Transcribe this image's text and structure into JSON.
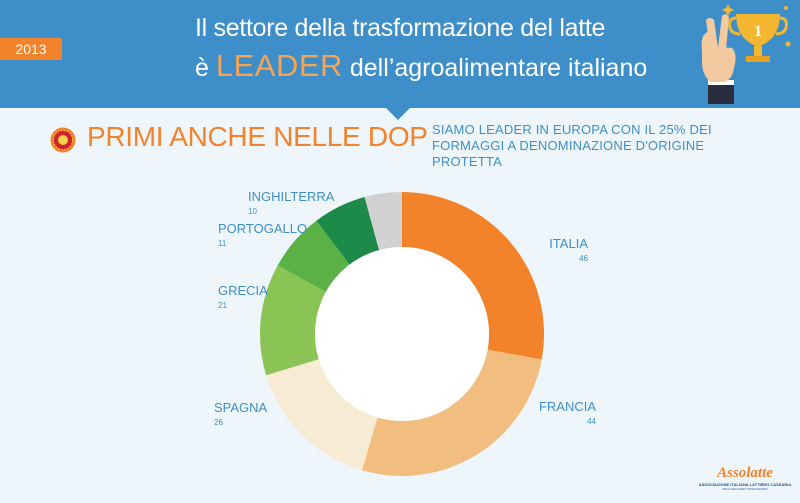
{
  "header": {
    "year": "2013",
    "title_line1": "Il settore della trasformazione del latte",
    "title_line2_pre": "è",
    "title_line2_highlight": "LEADER",
    "title_line2_post": "dell’agroalimentare italiano"
  },
  "section": {
    "title": "PRIMI ANCHE NELLE DOP",
    "subtitle_line1": "SIAMO LEADER IN EUROPA CON IL 25% DEI",
    "subtitle_line2": "FORMAGGI A DENOMINAZIONE D'ORIGINE PROTETTA"
  },
  "logo": {
    "name": "Assolatte",
    "sub1": "ASSOCIAZIONE ITALIANA LATTIERO CASEARIA",
    "sub2": "MILK AND DAIRY ASSOCIATION"
  },
  "colors": {
    "header_blue": "#3e8fc9",
    "accent_orange": "#f3832a"
  },
  "icons": [
    "trophy-hand-icon",
    "dop-seal-icon"
  ],
  "chart_data": {
    "type": "pie",
    "title": "",
    "categories": [
      "ITALIA",
      "FRANCIA",
      "SPAGNA",
      "GRECIA",
      "PORTOGALLO",
      "INGHILTERRA",
      ""
    ],
    "values": [
      46,
      44,
      26,
      21,
      11,
      10,
      7
    ],
    "value_labels": [
      "46",
      "44",
      "26",
      "21",
      "11",
      "10",
      ""
    ],
    "colors": [
      "#f3832a",
      "#f2be7f",
      "#f8ebd4",
      "#8ac454",
      "#5ab146",
      "#1d8a4a",
      "#d1d1d1"
    ],
    "donut": true
  }
}
